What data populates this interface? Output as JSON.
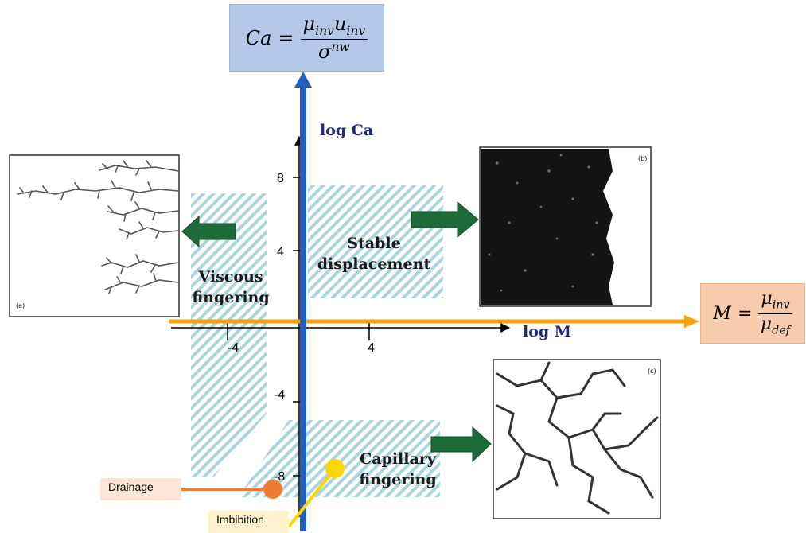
{
  "formulas": {
    "capillary_number": {
      "lhs": "Ca",
      "eq": "=",
      "numerator": "μinvuinv",
      "denominator": "σnw"
    },
    "viscosity_ratio": {
      "lhs": "M",
      "eq": "=",
      "numerator": "μinv",
      "denominator": "μdef"
    }
  },
  "axes": {
    "y_label": "log Ca",
    "x_label": "log M",
    "y_ticks": [
      "8",
      "4",
      "-4",
      "-8"
    ],
    "x_ticks": [
      "-4",
      "4"
    ]
  },
  "regions": {
    "viscous": [
      "Viscous",
      "fingering"
    ],
    "stable": [
      "Stable",
      "displacement"
    ],
    "capillary": [
      "Capillary",
      "fingering"
    ]
  },
  "callouts": {
    "drainage": "Drainage",
    "imbibition": "Imbibition"
  },
  "pattern_badges": [
    "(a)",
    "(b)",
    "(c)"
  ],
  "colors": {
    "blue_arrow": "#1f5fbf",
    "orange_arrow": "#f5a00f",
    "green_arrow": "#1e6b3a",
    "hatch": "#a8d5df",
    "drainage_dot": "#ed7d31",
    "imbibition_dot": "#ffd700",
    "axis_label": "#1f2a7a"
  }
}
